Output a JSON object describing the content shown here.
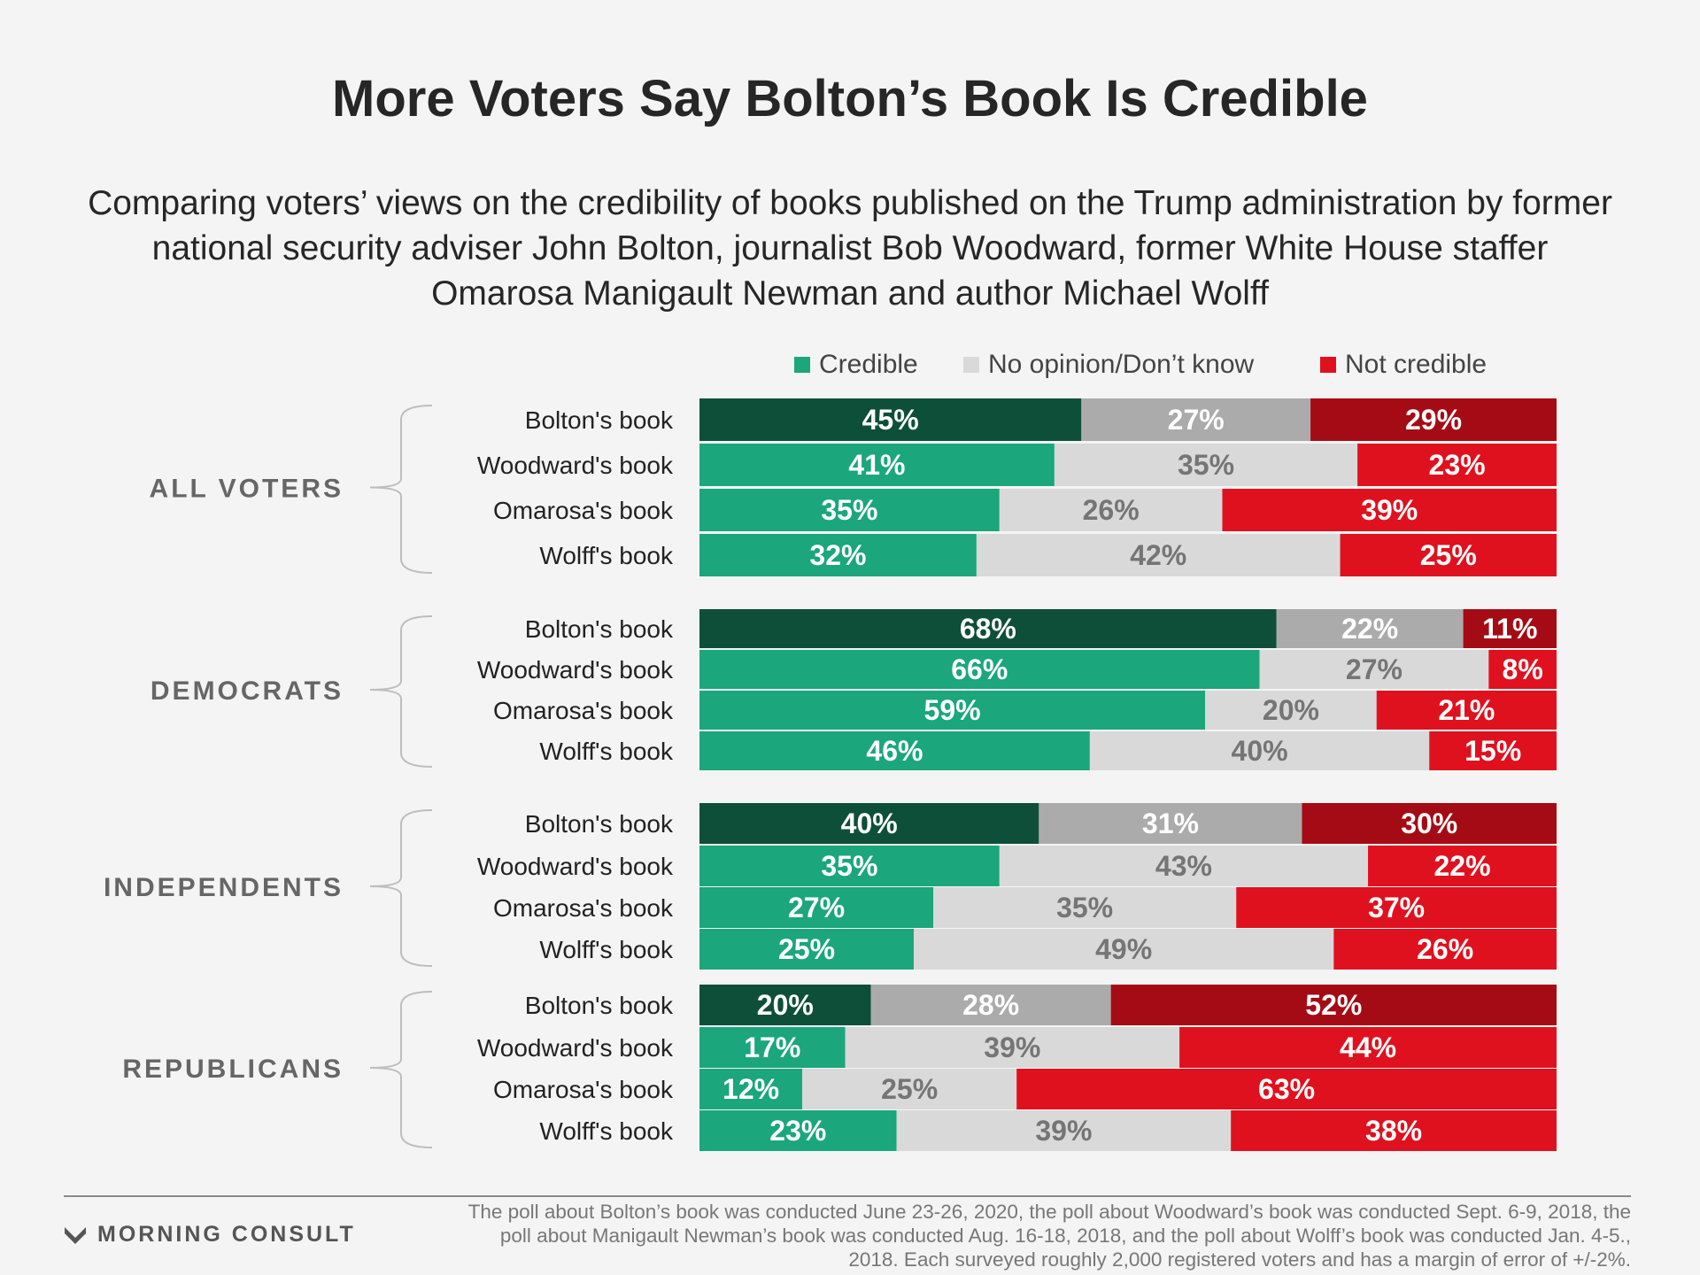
{
  "header": {
    "title": "More Voters Say Bolton’s Book Is Credible",
    "subtitle": "Comparing voters’ views on the credibility of books published on the Trump administration by former national security adviser John Bolton, journalist Bob Woodward, former White House staffer Omarosa Manigault Newman and author Michael Wolff"
  },
  "legend": [
    {
      "label": "Credible",
      "color": "#1ba67b"
    },
    {
      "label": "No opinion/Don’t know",
      "color": "#d9d9d9"
    },
    {
      "label": "Not credible",
      "color": "#e0111f"
    }
  ],
  "colors": {
    "credible_highlight": "#0e4f3a",
    "credible": "#1ba67b",
    "no_opinion_highlight": "#ababab",
    "no_opinion": "#d9d9d9",
    "not_credible_highlight": "#a50b14",
    "not_credible": "#e0111f"
  },
  "chart_data": {
    "type": "bar",
    "orientation": "horizontal",
    "stacked": true,
    "normalized": true,
    "series_names": [
      "Credible",
      "No opinion/Don’t know",
      "Not credible"
    ],
    "highlight_category": "Bolton's book",
    "groups": [
      {
        "name": "ALL VOTERS",
        "rows": [
          {
            "label": "Bolton's book",
            "values": [
              45,
              27,
              29
            ]
          },
          {
            "label": "Woodward's book",
            "values": [
              41,
              35,
              23
            ]
          },
          {
            "label": "Omarosa's book",
            "values": [
              35,
              26,
              39
            ]
          },
          {
            "label": "Wolff's book",
            "values": [
              32,
              42,
              25
            ]
          }
        ]
      },
      {
        "name": "DEMOCRATS",
        "rows": [
          {
            "label": "Bolton's book",
            "values": [
              68,
              22,
              11
            ]
          },
          {
            "label": "Woodward's book",
            "values": [
              66,
              27,
              8
            ]
          },
          {
            "label": "Omarosa's book",
            "values": [
              59,
              20,
              21
            ]
          },
          {
            "label": "Wolff's book",
            "values": [
              46,
              40,
              15
            ]
          }
        ]
      },
      {
        "name": "INDEPENDENTS",
        "rows": [
          {
            "label": "Bolton's book",
            "values": [
              40,
              31,
              30
            ]
          },
          {
            "label": "Woodward's book",
            "values": [
              35,
              43,
              22
            ]
          },
          {
            "label": "Omarosa's book",
            "values": [
              27,
              35,
              37
            ]
          },
          {
            "label": "Wolff's book",
            "values": [
              25,
              49,
              26
            ]
          }
        ]
      },
      {
        "name": "REPUBLICANS",
        "rows": [
          {
            "label": "Bolton's book",
            "values": [
              20,
              28,
              52
            ]
          },
          {
            "label": "Woodward's book",
            "values": [
              17,
              39,
              44
            ]
          },
          {
            "label": "Omarosa's book",
            "values": [
              12,
              25,
              63
            ]
          },
          {
            "label": "Wolff's book",
            "values": [
              23,
              39,
              38
            ]
          }
        ]
      }
    ]
  },
  "footer": {
    "brand": "MORNING CONSULT",
    "note": "The poll about Bolton’s book was conducted June 23-26, 2020, the poll about Woodward’s book was conducted Sept. 6-9, 2018, the poll about Manigault Newman’s book was conducted Aug. 16-18, 2018, and the poll about Wolff’s book was conducted Jan. 4-5., 2018. Each surveyed roughly 2,000 registered voters and has a margin of error of +/-2%."
  }
}
